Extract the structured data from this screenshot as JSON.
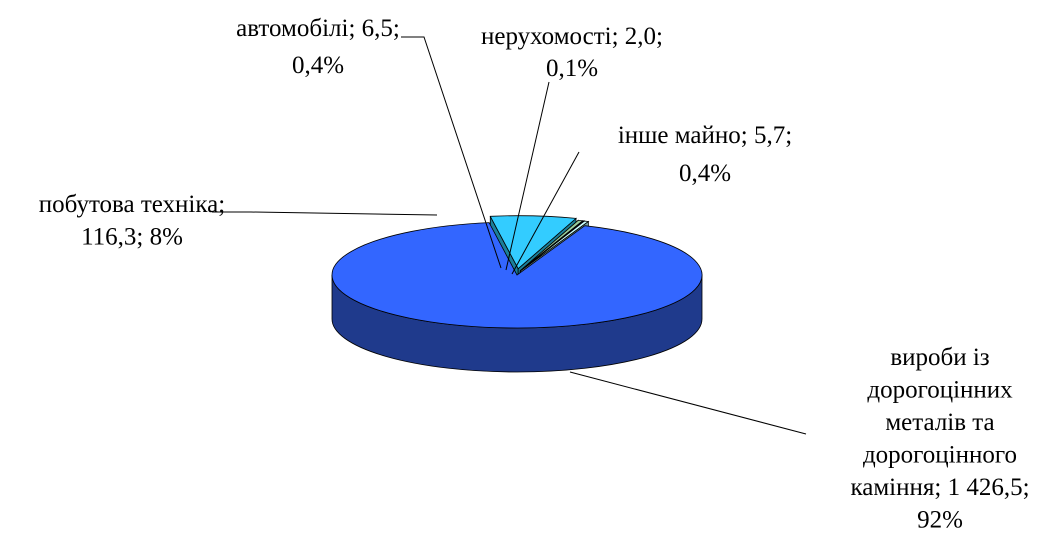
{
  "chart_data": {
    "type": "pie",
    "title": "",
    "legend": "none",
    "style": "3d",
    "slices": [
      {
        "category": "вироби із дорогоцінних металів та дорогоцінного каміння",
        "value": 1426.5,
        "percent": 92,
        "label_lines": [
          "вироби із",
          "дорогоцінних",
          "металів та",
          "дорогоцінного",
          "каміння; 1 426,5;",
          "92%"
        ],
        "top_color": "#3366FF",
        "side_color": "#1F3A8C"
      },
      {
        "category": "побутова техніка",
        "value": 116.3,
        "percent": 8,
        "label_lines": [
          "побутова техніка;",
          "116,3; 8%"
        ],
        "top_color": "#33CCFF",
        "side_color": "#1B7F99"
      },
      {
        "category": "автомобілі",
        "value": 6.5,
        "percent": 0.4,
        "label_lines": [
          "автомобілі; 6,5;",
          "0,4%"
        ],
        "top_color": "#99CC99",
        "side_color": "#5C7F5C"
      },
      {
        "category": "нерухомості",
        "value": 2.0,
        "percent": 0.1,
        "label_lines": [
          "нерухомості; 2,0;",
          "0,1%"
        ],
        "top_color": "#000080",
        "side_color": "#00004D"
      },
      {
        "category": "інше майно",
        "value": 5.7,
        "percent": 0.4,
        "label_lines": [
          "інше майно; 5,7;",
          "0,4%"
        ],
        "top_color": "#CCFFFF",
        "side_color": "#7AA3A3"
      }
    ]
  }
}
